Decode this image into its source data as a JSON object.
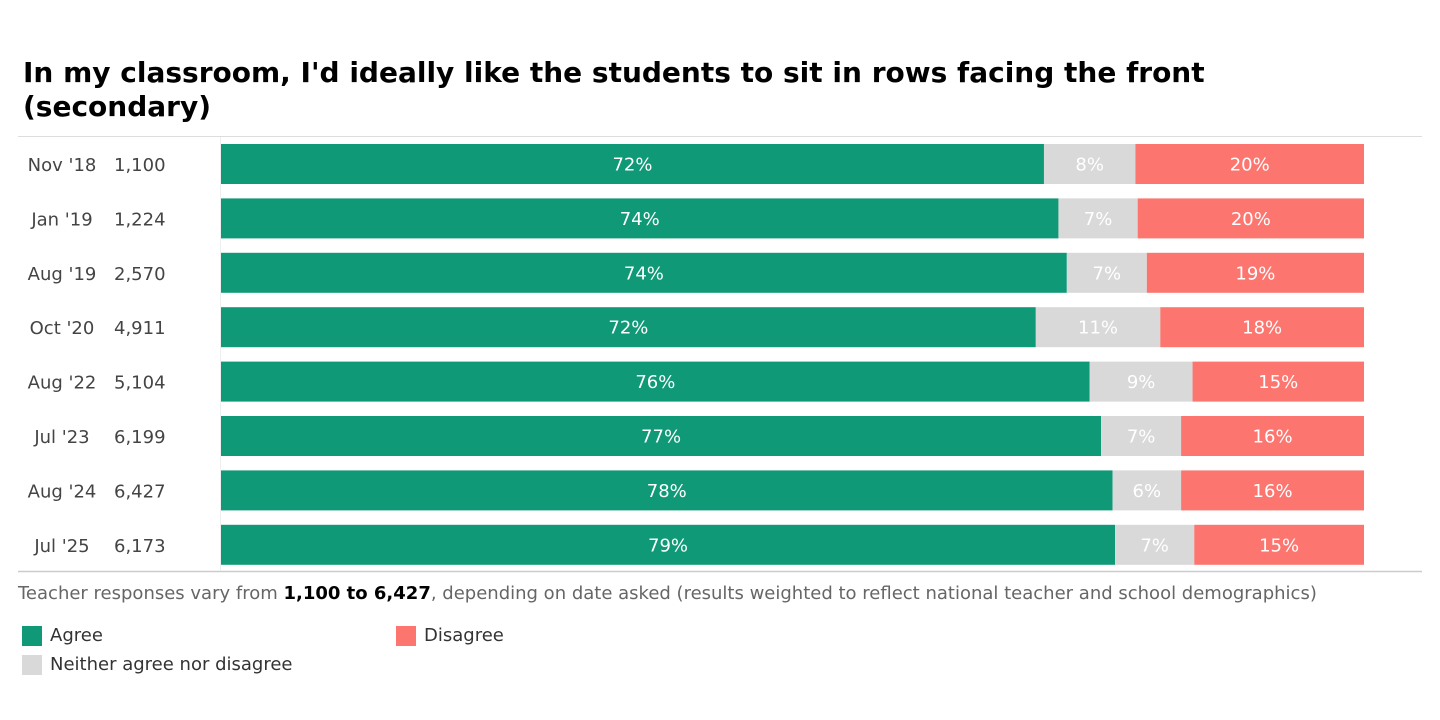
{
  "chart_data": {
    "type": "bar",
    "orientation": "horizontal",
    "stacked": true,
    "title": "In my classroom, I'd ideally like the students to sit in rows facing the front (secondary)",
    "categories": [
      "Nov '18",
      "Jan '19",
      "Aug '19",
      "Oct '20",
      "Aug '22",
      "Jul '23",
      "Aug '24",
      "Jul '25"
    ],
    "respondents": [
      "1,100",
      "1,224",
      "2,570",
      "4,911",
      "5,104",
      "6,199",
      "6,427",
      "6,173"
    ],
    "series": [
      {
        "name": "Agree",
        "color": "#0f9977",
        "values": [
          72,
          74,
          74,
          72,
          76,
          77,
          78,
          79
        ]
      },
      {
        "name": "Neither agree nor disagree",
        "color": "#d9d9d9",
        "values": [
          8,
          7,
          7,
          11,
          9,
          7,
          6,
          7
        ]
      },
      {
        "name": "Disagree",
        "color": "#fc766f",
        "values": [
          20,
          20,
          19,
          18,
          15,
          16,
          16,
          15
        ]
      }
    ],
    "data_labels": [
      [
        "72%",
        "8%",
        "20%"
      ],
      [
        "74%",
        "7%",
        "20%"
      ],
      [
        "74%",
        "7%",
        "19%"
      ],
      [
        "72%",
        "11%",
        "18%"
      ],
      [
        "76%",
        "9%",
        "15%"
      ],
      [
        "77%",
        "7%",
        "16%"
      ],
      [
        "78%",
        "6%",
        "16%"
      ],
      [
        "79%",
        "7%",
        "15%"
      ]
    ],
    "xlim": [
      0,
      100
    ],
    "grid": false,
    "legend_placement": "bottom-left"
  },
  "note": {
    "prefix": "Teacher responses vary from ",
    "bold": "1,100 to 6,427",
    "suffix": ", depending on date asked (results weighted to reflect national teacher and school demographics)"
  }
}
